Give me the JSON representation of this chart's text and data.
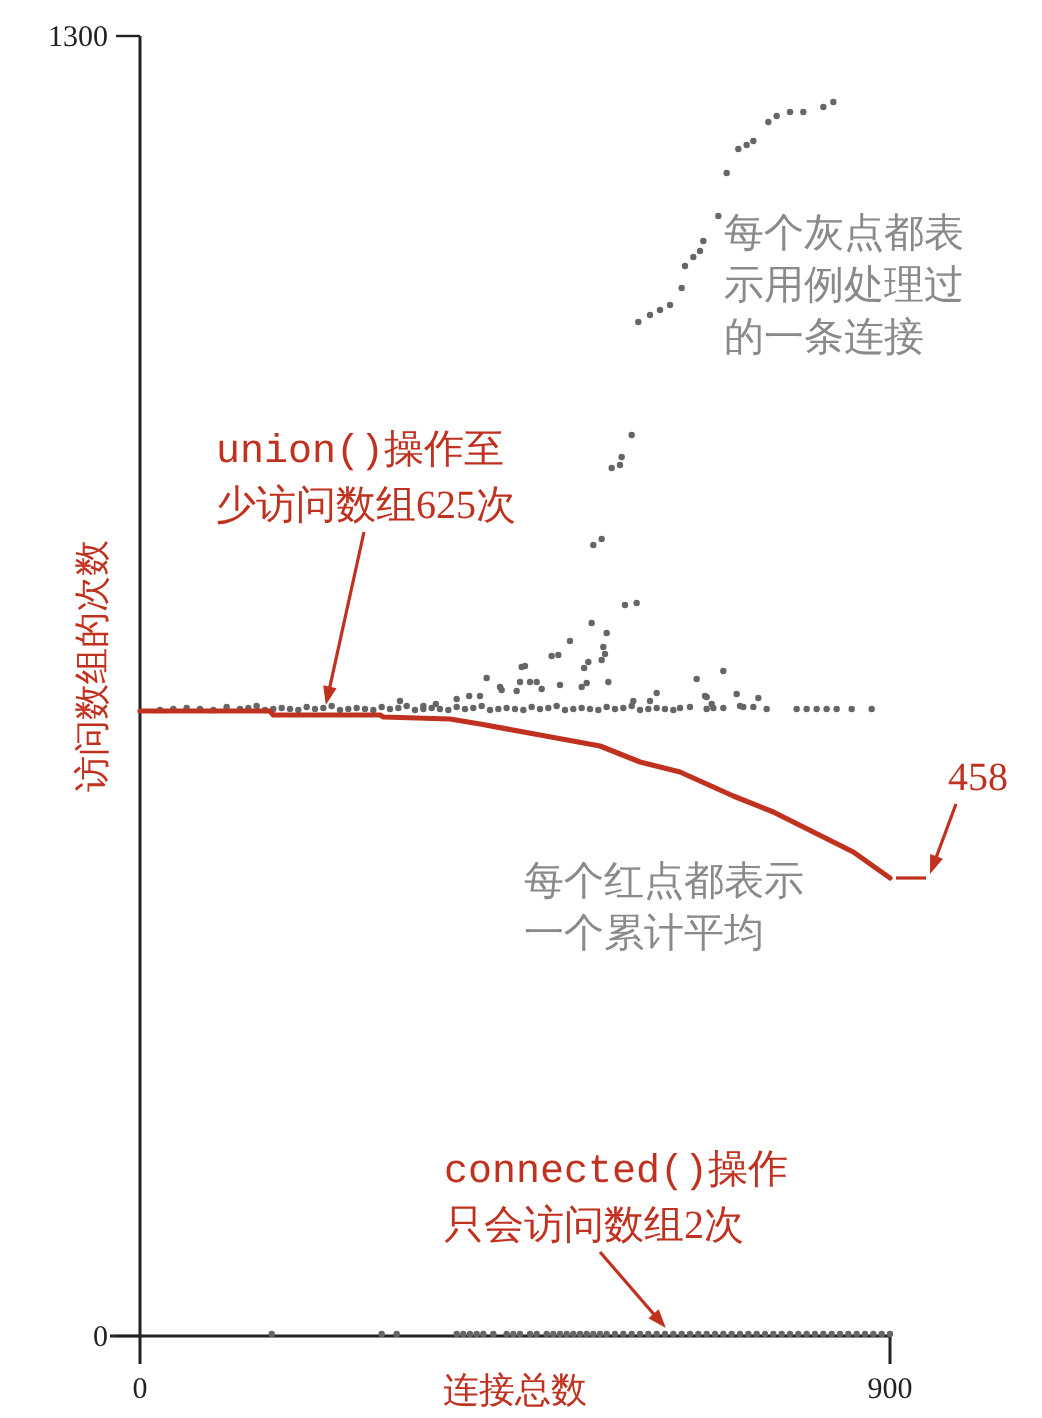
{
  "chart_data": {
    "type": "scatter",
    "xlabel": "连接总数",
    "ylabel": "访问数组的次数",
    "xlim": [
      0,
      900
    ],
    "ylim": [
      0,
      1300
    ],
    "xticks": [
      0,
      900
    ],
    "yticks": [
      0,
      1300
    ],
    "grid": false,
    "series": [
      {
        "type": "scatter",
        "marker": "circle",
        "color": "#666666",
        "x": [
          598,
          612,
          624,
          636,
          650,
          654,
          664,
          672,
          676,
          694,
          704,
          718,
          728,
          736,
          754,
          764,
          780,
          796,
          820,
          832,
          590,
          578,
          566,
          576,
          544,
          554,
          582,
          596,
          542,
          560,
          516,
          556,
          558,
          554,
          538,
          494,
          502,
          462,
          458,
          533,
          416,
          456,
          468,
          476,
          562,
          668,
          700,
          434,
          452,
          482,
          504,
          530,
          620,
          678,
          716,
          742,
          408,
          592,
          686,
          724,
          680,
          536,
          432,
          612,
          648,
          688,
          736,
          752,
          788,
          800,
          812,
          824,
          836,
          854,
          878,
          24,
          40,
          56,
          72,
          88,
          104,
          120,
          130,
          140,
          150,
          160,
          170,
          180,
          190,
          200,
          210,
          220,
          230,
          240,
          250,
          260,
          270,
          280,
          290,
          300,
          310,
          320,
          330,
          340,
          350,
          360,
          370,
          380,
          390,
          400,
          410,
          420,
          430,
          440,
          450,
          460,
          470,
          480,
          490,
          500,
          510,
          520,
          530,
          540,
          550,
          560,
          570,
          580,
          590,
          600,
          610,
          620,
          630,
          640,
          660,
          680,
          700,
          720,
          312,
          355,
          380,
          395,
          340,
          158,
          290,
          308,
          380,
          388,
          396,
          404,
          412,
          424,
          440,
          448,
          456,
          468,
          476,
          488,
          496,
          504,
          512,
          520,
          528,
          536,
          544,
          552,
          560,
          570,
          580,
          590,
          600,
          610,
          620,
          630,
          640,
          650,
          660,
          670,
          680,
          690,
          700,
          710,
          720,
          730,
          740,
          750,
          760,
          770,
          780,
          790,
          800,
          810,
          820,
          830,
          840,
          850,
          860,
          870,
          880,
          890,
          900
        ],
        "values": [
          1014,
          1021,
          1026,
          1031,
          1048,
          1070,
          1079,
          1085,
          1095,
          1120,
          1163,
          1187,
          1191,
          1195,
          1214,
          1220,
          1224,
          1224,
          1229,
          1234,
          901,
          879,
          868,
          871,
          791,
          797,
          731,
          733,
          713,
          703,
          695,
          689,
          682,
          676,
          674,
          680,
          681,
          670,
          669,
          668,
          658,
          654,
          654,
          654,
          654,
          657,
          665,
          646,
          645,
          647,
          651,
          649,
          643,
          640,
          642,
          638,
          640,
          635,
          632,
          629,
          639,
          653,
          649,
          635,
          628,
          628,
          629,
          627,
          627,
          627,
          627,
          627,
          627,
          627,
          627,
          626,
          627,
          628,
          627,
          626,
          629,
          627,
          628,
          630,
          626,
          627,
          628,
          627,
          626,
          629,
          627,
          628,
          630,
          626,
          627,
          628,
          627,
          626,
          629,
          627,
          628,
          630,
          626,
          627,
          628,
          627,
          626,
          629,
          627,
          628,
          630,
          626,
          627,
          628,
          627,
          626,
          629,
          627,
          628,
          630,
          626,
          627,
          628,
          627,
          626,
          629,
          627,
          628,
          630,
          626,
          627,
          628,
          627,
          626,
          629,
          627,
          628,
          630,
          635,
          632,
          637,
          640,
          630,
          2,
          2,
          2,
          2,
          2,
          2,
          2,
          2,
          2,
          2,
          2,
          2,
          2,
          2,
          2,
          2,
          2,
          2,
          2,
          2,
          2,
          2,
          2,
          2,
          2,
          2,
          2,
          2,
          2,
          2,
          2,
          2,
          2,
          2,
          2,
          2,
          2,
          2,
          2,
          2,
          2,
          2,
          2,
          2,
          2,
          2,
          2,
          2,
          2,
          2,
          2,
          2,
          2,
          2,
          2,
          2,
          2,
          2
        ]
      },
      {
        "type": "line",
        "color": "#c0311f",
        "x": [
          0,
          156,
          160,
          288,
          292,
          372,
          408,
          480,
          552,
          600,
          648,
          712,
          760,
          808,
          856,
          900
        ],
        "values": [
          625,
          625,
          621,
          621,
          619,
          617,
          612,
          601,
          590,
          574,
          564,
          540,
          524,
          504,
          484,
          458
        ]
      }
    ],
    "annotations": [
      {
        "text": "union()操作至少访问数组625次",
        "x": 223,
        "y": 625
      },
      "每个灰点都表示用例处理过的一条连接",
      "每个红点都表示一个累计平均",
      {
        "text": "458",
        "x": 900,
        "y": 458
      },
      {
        "text": "connected()操作只会访问数组2次",
        "x": 631,
        "y": 2
      }
    ]
  }
}
